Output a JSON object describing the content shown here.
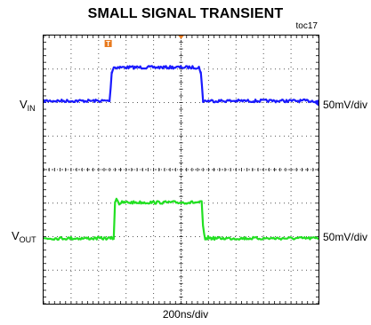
{
  "title": "SMALL SIGNAL TRANSIENT",
  "figure_id": "toc17",
  "channels": [
    {
      "label_main": "V",
      "label_sub": "IN",
      "scale": "50mV/div",
      "color": "#1a1aff"
    },
    {
      "label_main": "V",
      "label_sub": "OUT",
      "scale": "50mV/div",
      "color": "#22e022"
    }
  ],
  "x_scale": "200ns/div",
  "trigger_marker": "T",
  "trigger_color": "#e87a1e",
  "chart_data": {
    "type": "line",
    "title": "SMALL SIGNAL TRANSIENT",
    "xlabel": "200ns/div",
    "grid": true,
    "x_divisions": 10,
    "y_divisions": 8,
    "x_unit": "div",
    "y_unit": "div",
    "xlim": [
      0,
      10
    ],
    "ylim": [
      -4,
      4
    ],
    "series": [
      {
        "x": [
          0,
          2.4,
          2.48,
          2.55,
          5.65,
          5.72,
          5.8,
          10
        ],
        "y": [
          2.05,
          2.05,
          2.9,
          3.05,
          3.05,
          2.9,
          2.05,
          2.05
        ]
      },
      {
        "x": [
          0,
          2.55,
          2.6,
          2.65,
          2.75,
          2.85,
          5.75,
          5.8,
          5.88,
          5.98,
          6.1,
          10
        ],
        "y": [
          -2.05,
          -2.05,
          -1.0,
          -0.85,
          -1.02,
          -0.98,
          -0.98,
          -1.7,
          -2.12,
          -2.02,
          -2.05,
          -2.05
        ]
      }
    ]
  }
}
